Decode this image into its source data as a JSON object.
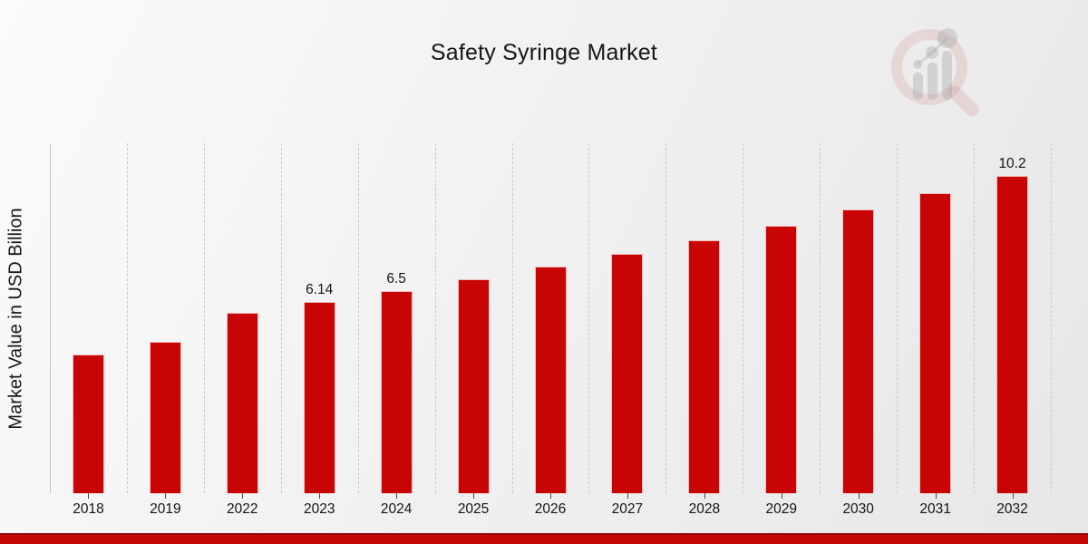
{
  "chart_data": {
    "type": "bar",
    "title": "Safety Syringe Market",
    "ylabel": "Market Value in USD Billion",
    "categories": [
      "2018",
      "2019",
      "2022",
      "2023",
      "2024",
      "2025",
      "2026",
      "2027",
      "2028",
      "2029",
      "2030",
      "2031",
      "2032"
    ],
    "values": [
      4.46,
      4.87,
      5.8,
      6.14,
      6.5,
      6.88,
      7.28,
      7.7,
      8.14,
      8.61,
      9.11,
      9.64,
      10.2
    ],
    "value_labels": [
      "",
      "",
      "",
      "6.14",
      "6.5",
      "",
      "",
      "",
      "",
      "",
      "",
      "",
      "10.2"
    ],
    "ylim": [
      0,
      11.25
    ],
    "grid": "vertical-dashed",
    "legend": "none",
    "bar_color": "#c90404",
    "gridline_color": "#c9c9c9",
    "text_color": "#141414",
    "accent_strip_color": "#c40707",
    "watermark_icon": "magnifier-bar-chart-logo"
  }
}
